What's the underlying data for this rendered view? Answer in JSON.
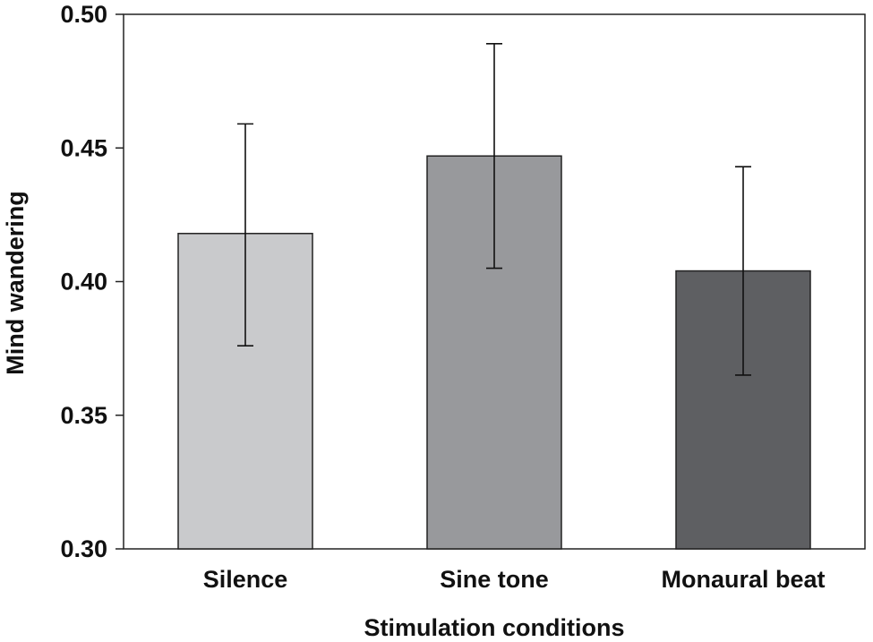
{
  "chart_data": {
    "type": "bar",
    "title": "",
    "xlabel": "Stimulation conditions",
    "ylabel": "Mind wandering",
    "ylim": [
      0.3,
      0.5
    ],
    "yticks": [
      "0.30",
      "0.35",
      "0.40",
      "0.45",
      "0.50"
    ],
    "ytick_values": [
      0.3,
      0.35,
      0.4,
      0.45,
      0.5
    ],
    "categories": [
      "Silence",
      "Sine tone",
      "Monaural beat"
    ],
    "values": [
      0.418,
      0.447,
      0.404
    ],
    "error_low": [
      0.376,
      0.405,
      0.365
    ],
    "error_high": [
      0.459,
      0.489,
      0.443
    ],
    "colors": [
      "#c9cacc",
      "#98999c",
      "#5e5f62"
    ],
    "grid": false
  }
}
